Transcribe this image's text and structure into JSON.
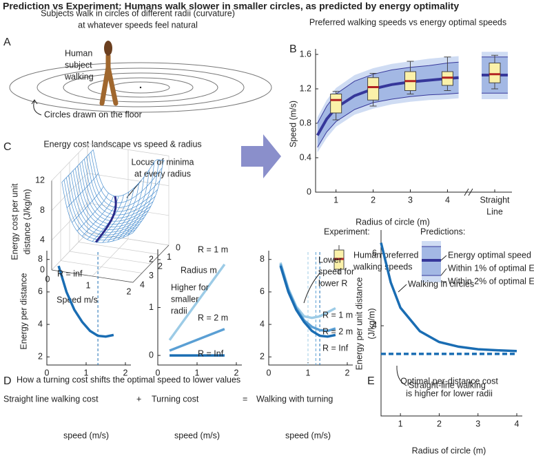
{
  "title": "Prediction vs Experiment: Humans walk slower in smaller circles, as predicted by energy optimality",
  "panel_a": {
    "label": "A",
    "caption": [
      "Subjects walk in circles of different radii (curvature)",
      "at whatever speeds feel natural"
    ],
    "subject": [
      "Human",
      "subject",
      "walking"
    ],
    "floor": "Circles drawn on the floor"
  },
  "panel_c": {
    "label": "C",
    "title": "Energy cost landscape vs speed & radius",
    "annotation": [
      "Locus of minima",
      "at every radius"
    ],
    "zlabel": [
      "Energy cost per unit",
      "distance (J/kg/m)"
    ],
    "xlabel": "Speed m/s",
    "ylabel": "Radius m",
    "zticks": [
      0,
      4,
      8,
      12
    ],
    "xticks": [
      0,
      1,
      2
    ],
    "yticks": [
      0,
      1,
      2,
      3,
      4
    ]
  },
  "panel_d": {
    "label": "D",
    "title": "How a turning cost shifts the optimal speed to lower values",
    "operators": [
      "+",
      "="
    ]
  },
  "chart_data": [
    {
      "type": "box",
      "label": "B",
      "title": "Preferred walking speeds vs energy optimal speeds",
      "y_label": "Speed (m/s)",
      "x_label": "Radius of circle (m)",
      "xlim": [
        0.45,
        4.4
      ],
      "ylim": [
        0,
        1.6
      ],
      "xticks": [
        1,
        2,
        3,
        4
      ],
      "yticks": [
        0,
        0.4,
        0.8,
        1.2,
        1.6
      ],
      "box_color": "#fbf1a9",
      "median_color": "#b22222",
      "line_color": "#36379a",
      "band_colors": [
        "#cfdcf3",
        "#a3b8e4"
      ],
      "boxes": [
        {
          "x": 1,
          "whisker_low": 0.84,
          "q1": 0.92,
          "median": 1.07,
          "q3": 1.14,
          "whisker_high": 1.17
        },
        {
          "x": 2,
          "whisker_low": 1.0,
          "q1": 1.07,
          "median": 1.22,
          "q3": 1.33,
          "whisker_high": 1.38
        },
        {
          "x": 3,
          "whisker_low": 1.14,
          "q1": 1.18,
          "median": 1.29,
          "q3": 1.4,
          "whisker_high": 1.52
        },
        {
          "x": 4,
          "whisker_low": 1.18,
          "q1": 1.24,
          "median": 1.33,
          "q3": 1.4,
          "whisker_high": 1.57
        }
      ],
      "prediction": {
        "x": [
          0.5,
          0.75,
          1,
          1.5,
          2,
          2.5,
          3,
          3.5,
          4,
          4.3
        ],
        "optimal": [
          0.66,
          0.85,
          0.98,
          1.12,
          1.2,
          1.25,
          1.28,
          1.3,
          1.32,
          1.33
        ],
        "band_1pct_low": [
          0.52,
          0.7,
          0.82,
          0.96,
          1.04,
          1.08,
          1.11,
          1.13,
          1.14,
          1.15
        ],
        "band_1pct_high": [
          0.8,
          1.0,
          1.14,
          1.29,
          1.37,
          1.42,
          1.45,
          1.47,
          1.5,
          1.51
        ],
        "band_2pct_low": [
          0.46,
          0.63,
          0.76,
          0.9,
          0.97,
          1.02,
          1.05,
          1.07,
          1.08,
          1.09
        ],
        "band_2pct_high": [
          0.87,
          1.07,
          1.21,
          1.36,
          1.44,
          1.49,
          1.52,
          1.55,
          1.57,
          1.58
        ]
      },
      "straight_line": {
        "label": [
          "Straight",
          "Line"
        ],
        "box": {
          "whisker_low": 1.2,
          "q1": 1.27,
          "median": 1.37,
          "q3": 1.5,
          "whisker_high": 1.59
        },
        "optimal": 1.36,
        "band_1pct": [
          1.15,
          1.57
        ],
        "band_2pct": [
          1.08,
          1.63
        ]
      },
      "legend": {
        "experiment_title": "Experiment:",
        "experiment": [
          "Human preferred",
          "walking speeds"
        ],
        "predictions_title": "Predictions:",
        "predictions": [
          "Energy optimal speed",
          "Within 1% of optimal E",
          "Within 2% of optimal E"
        ]
      }
    },
    {
      "type": "line",
      "title": "Straight line walking cost",
      "y_label": "Energy per distance",
      "x_label": "speed (m/s)",
      "xlim": [
        0,
        2
      ],
      "ylim": [
        1.5,
        8.2
      ],
      "xticks": [
        0,
        1,
        2
      ],
      "yticks": [
        2,
        4,
        6,
        8
      ],
      "vlines": [
        1.3
      ],
      "series": [
        {
          "name": "R = inf",
          "color": "#1a6db3",
          "x": [
            0.3,
            0.5,
            0.7,
            0.9,
            1.1,
            1.3,
            1.5,
            1.7
          ],
          "values": [
            7.6,
            6.0,
            4.9,
            4.15,
            3.6,
            3.3,
            3.25,
            3.35
          ]
        }
      ]
    },
    {
      "type": "line",
      "title": "Turning cost",
      "x_label": "speed (m/s)",
      "xlim": [
        0,
        2
      ],
      "ylim": [
        -0.2,
        2.1
      ],
      "xticks": [
        0,
        1,
        2
      ],
      "yticks": [
        0,
        1,
        2
      ],
      "annotations": [
        [
          "Higher for",
          "smaller",
          "radii"
        ]
      ],
      "series": [
        {
          "name": "R = 1 m",
          "color": "#9ccbe6",
          "x": [
            0.3,
            1.7
          ],
          "values": [
            0.32,
            1.9
          ]
        },
        {
          "name": "R = 2 m",
          "color": "#5a9fd4",
          "x": [
            0.3,
            1.7
          ],
          "values": [
            0.1,
            0.55
          ]
        },
        {
          "name": "R = Inf",
          "color": "#1a6db3",
          "x": [
            0.3,
            1.7
          ],
          "values": [
            0,
            0
          ]
        }
      ]
    },
    {
      "type": "line",
      "title": "Walking with turning",
      "x_label": "speed (m/s)",
      "xlim": [
        0,
        2
      ],
      "ylim": [
        1.5,
        8.2
      ],
      "xticks": [
        0,
        1,
        2
      ],
      "yticks": [
        2,
        4,
        6,
        8
      ],
      "vlines": [
        1.0,
        1.2,
        1.3
      ],
      "annotations": [
        [
          "Lower",
          "speed for",
          "lower R"
        ]
      ],
      "series": [
        {
          "name": "R = 1 m",
          "color": "#9ccbe6",
          "x": [
            0.3,
            0.5,
            0.7,
            0.9,
            1.1,
            1.3,
            1.5,
            1.7
          ],
          "values": [
            7.8,
            6.2,
            5.1,
            4.5,
            4.4,
            4.5,
            4.75,
            5.0
          ]
        },
        {
          "name": "R = 2 m",
          "color": "#5a9fd4",
          "x": [
            0.3,
            0.5,
            0.7,
            0.9,
            1.1,
            1.3,
            1.5,
            1.7
          ],
          "values": [
            7.7,
            6.1,
            5.0,
            4.25,
            3.85,
            3.65,
            3.6,
            3.75
          ]
        },
        {
          "name": "R = Inf",
          "color": "#1a6db3",
          "x": [
            0.3,
            0.5,
            0.7,
            0.9,
            1.1,
            1.3,
            1.5,
            1.7
          ],
          "values": [
            7.6,
            6.0,
            4.9,
            4.15,
            3.6,
            3.3,
            3.25,
            3.35
          ]
        }
      ]
    },
    {
      "type": "line",
      "label": "E",
      "title": [
        "Optimal per-distance cost",
        "is higher for lower radii"
      ],
      "y_label": [
        "Energy per unit distance",
        "(J/kg/m)"
      ],
      "x_label": "Radius of circle (m)",
      "xlim": [
        0.5,
        4
      ],
      "ylim": [
        1.5,
        6.5
      ],
      "xticks": [
        1,
        2,
        3,
        4
      ],
      "yticks": [
        4,
        6
      ],
      "series": [
        {
          "name": "Walking in circles",
          "color": "#1a6db3",
          "style": "solid",
          "x": [
            0.5,
            0.75,
            1,
            1.5,
            2,
            2.5,
            3,
            3.5,
            4
          ],
          "values": [
            6.3,
            5.2,
            4.5,
            3.85,
            3.55,
            3.42,
            3.35,
            3.32,
            3.3
          ]
        },
        {
          "name": "Straight-line walking",
          "color": "#1a6db3",
          "style": "dashed",
          "x": [
            0.5,
            4
          ],
          "values": [
            3.22,
            3.22
          ]
        }
      ]
    }
  ]
}
